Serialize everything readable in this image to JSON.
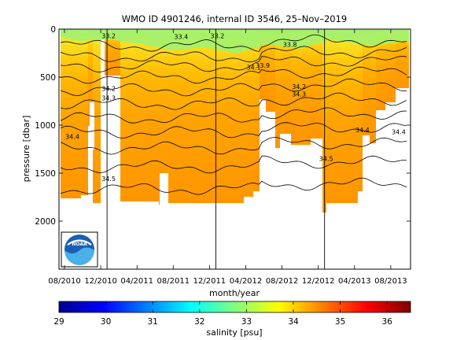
{
  "chart_data": {
    "type": "heatmap",
    "title": "WMO ID 4901246, internal ID 3546, 25–Nov–2019",
    "xlabel": "month/year",
    "ylabel": "pressure [dbar]",
    "x_ticks": [
      "08/2010",
      "12/2010",
      "04/2011",
      "08/2011",
      "12/2011",
      "04/2012",
      "08/2012",
      "12/2012",
      "04/2013",
      "08/2013"
    ],
    "y_ticks": [
      0,
      500,
      1000,
      1500,
      2000
    ],
    "ylim": [
      0,
      2500
    ],
    "y_reversed": true,
    "colorbar": {
      "label": "salinity [psu]",
      "range": [
        29,
        36.5
      ],
      "ticks": [
        29,
        30,
        31,
        32,
        33,
        34,
        35,
        36
      ],
      "colormap": "jet"
    },
    "vertical_markers": [
      "12/2010",
      "12/2011",
      "12/2012"
    ],
    "contour_labels": [
      {
        "text": "33.2",
        "x": "12/2010",
        "y": 60
      },
      {
        "text": "33.4",
        "x": "08/2011",
        "y": 70
      },
      {
        "text": "33.2",
        "x": "12/2011",
        "y": 60
      },
      {
        "text": "33.8",
        "x": "08/2012",
        "y": 150
      },
      {
        "text": "34.1",
        "x": "04/2012",
        "y": 390
      },
      {
        "text": "33.9",
        "x": "05/2012",
        "y": 370
      },
      {
        "text": "34.2",
        "x": "12/2010",
        "y": 610
      },
      {
        "text": "34.3",
        "x": "12/2010",
        "y": 710
      },
      {
        "text": "34.4",
        "x": "08/2010",
        "y": 1110
      },
      {
        "text": "34.5",
        "x": "12/2010",
        "y": 1550
      },
      {
        "text": "34.2",
        "x": "09/2012",
        "y": 590
      },
      {
        "text": "34.3",
        "x": "09/2012",
        "y": 670
      },
      {
        "text": "34.4",
        "x": "04/2013",
        "y": 1040
      },
      {
        "text": "34.4",
        "x": "08/2013",
        "y": 1060
      },
      {
        "text": "34.5",
        "x": "12/2012",
        "y": 1340
      }
    ]
  },
  "logo": {
    "text": "NOAA"
  }
}
